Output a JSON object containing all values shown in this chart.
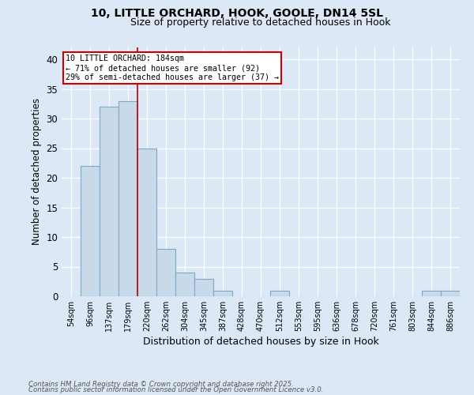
{
  "title1": "10, LITTLE ORCHARD, HOOK, GOOLE, DN14 5SL",
  "title2": "Size of property relative to detached houses in Hook",
  "xlabel": "Distribution of detached houses by size in Hook",
  "ylabel": "Number of detached properties",
  "categories": [
    "54sqm",
    "96sqm",
    "137sqm",
    "179sqm",
    "220sqm",
    "262sqm",
    "304sqm",
    "345sqm",
    "387sqm",
    "428sqm",
    "470sqm",
    "512sqm",
    "553sqm",
    "595sqm",
    "636sqm",
    "678sqm",
    "720sqm",
    "761sqm",
    "803sqm",
    "844sqm",
    "886sqm"
  ],
  "values": [
    0,
    22,
    32,
    33,
    25,
    8,
    4,
    3,
    1,
    0,
    0,
    1,
    0,
    0,
    0,
    0,
    0,
    0,
    0,
    1,
    1
  ],
  "bar_color": "#c8d9ea",
  "bar_edge_color": "#7aaac8",
  "vline_x": 3.5,
  "vline_color": "#bb0000",
  "ylim": [
    0,
    42
  ],
  "yticks": [
    0,
    5,
    10,
    15,
    20,
    25,
    30,
    35,
    40
  ],
  "annotation_text": "10 LITTLE ORCHARD: 184sqm\n← 71% of detached houses are smaller (92)\n29% of semi-detached houses are larger (37) →",
  "annotation_box_facecolor": "#ffffff",
  "annotation_box_edgecolor": "#cc0000",
  "footer1": "Contains HM Land Registry data © Crown copyright and database right 2025.",
  "footer2": "Contains public sector information licensed under the Open Government Licence v3.0.",
  "bg_color": "#dce8f5",
  "title1_fontsize": 10,
  "title2_fontsize": 9
}
